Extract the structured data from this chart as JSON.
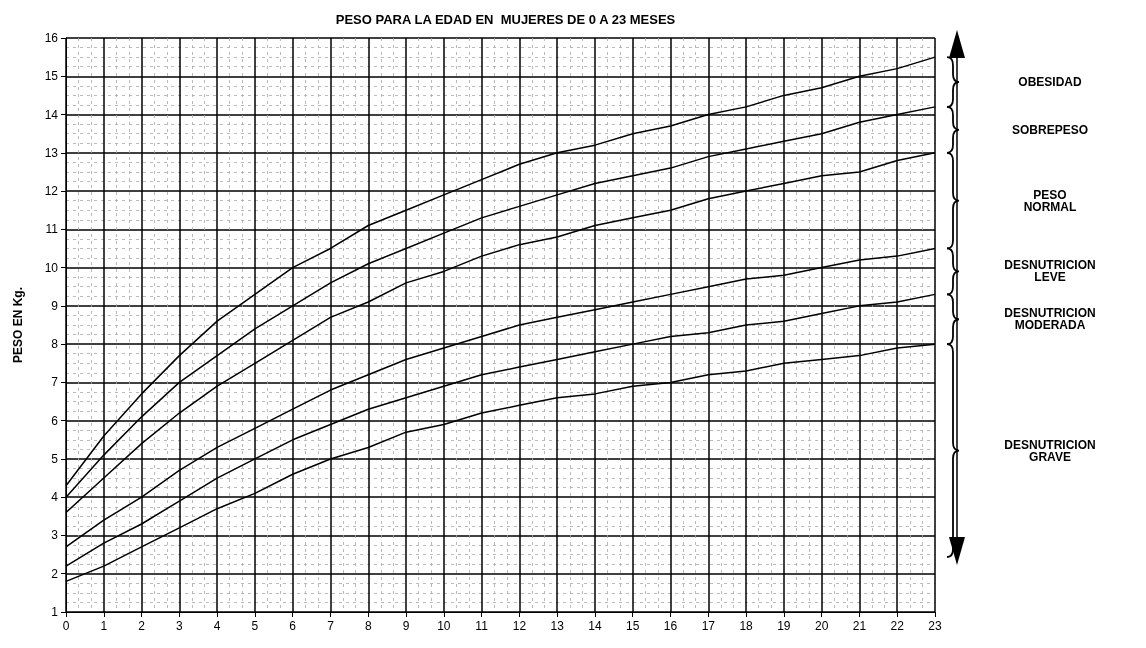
{
  "chart_data": {
    "type": "line",
    "title": "PESO PARA LA EDAD EN  MUJERES DE 0 A 23 MESES",
    "ylabel": "PESO EN Kg.",
    "x": [
      0,
      1,
      2,
      3,
      4,
      5,
      6,
      7,
      8,
      9,
      10,
      11,
      12,
      13,
      14,
      15,
      16,
      17,
      18,
      19,
      20,
      21,
      22,
      23
    ],
    "series": [
      {
        "color": "#000000",
        "values": [
          4.3,
          5.6,
          6.7,
          7.7,
          8.6,
          9.3,
          10.0,
          10.5,
          11.1,
          11.5,
          11.9,
          12.3,
          12.7,
          13.0,
          13.2,
          13.5,
          13.7,
          14.0,
          14.2,
          14.5,
          14.7,
          15.0,
          15.2,
          15.5
        ]
      },
      {
        "color": "#000000",
        "values": [
          4.0,
          5.1,
          6.1,
          7.0,
          7.7,
          8.4,
          9.0,
          9.6,
          10.1,
          10.5,
          10.9,
          11.3,
          11.6,
          11.9,
          12.2,
          12.4,
          12.6,
          12.9,
          13.1,
          13.3,
          13.5,
          13.8,
          14.0,
          14.2
        ]
      },
      {
        "color": "#000000",
        "values": [
          3.6,
          4.5,
          5.4,
          6.2,
          6.9,
          7.5,
          8.1,
          8.7,
          9.1,
          9.6,
          9.9,
          10.3,
          10.6,
          10.8,
          11.1,
          11.3,
          11.5,
          11.8,
          12.0,
          12.2,
          12.4,
          12.5,
          12.8,
          13.0
        ]
      },
      {
        "color": "#000000",
        "values": [
          2.7,
          3.4,
          4.0,
          4.7,
          5.3,
          5.8,
          6.3,
          6.8,
          7.2,
          7.6,
          7.9,
          8.2,
          8.5,
          8.7,
          8.9,
          9.1,
          9.3,
          9.5,
          9.7,
          9.8,
          10.0,
          10.2,
          10.3,
          10.5
        ]
      },
      {
        "color": "#000000",
        "values": [
          2.2,
          2.8,
          3.3,
          3.9,
          4.5,
          5.0,
          5.5,
          5.9,
          6.3,
          6.6,
          6.9,
          7.2,
          7.4,
          7.6,
          7.8,
          8.0,
          8.2,
          8.3,
          8.5,
          8.6,
          8.8,
          9.0,
          9.1,
          9.3
        ]
      },
      {
        "color": "#000000",
        "values": [
          1.8,
          2.2,
          2.7,
          3.2,
          3.7,
          4.1,
          4.6,
          5.0,
          5.3,
          5.7,
          5.9,
          6.2,
          6.4,
          6.6,
          6.7,
          6.9,
          7.0,
          7.2,
          7.3,
          7.5,
          7.6,
          7.7,
          7.9,
          8.0
        ]
      }
    ],
    "xlim": [
      0,
      23
    ],
    "xticks": [
      0,
      1,
      2,
      3,
      4,
      5,
      6,
      7,
      8,
      9,
      10,
      11,
      12,
      13,
      14,
      15,
      16,
      17,
      18,
      19,
      20,
      21,
      22,
      23
    ],
    "ylim": [
      1,
      16
    ],
    "yticks": [
      1,
      2,
      3,
      4,
      5,
      6,
      7,
      8,
      9,
      10,
      11,
      12,
      13,
      14,
      15,
      16
    ],
    "grid": true,
    "marker": "none",
    "line_style": "solid",
    "annotations": [
      "OBESIDAD",
      "SOBREPESO",
      "PESO\nNORMAL",
      "DESNUTRICION\nLEVE",
      "DESNUTRICION\nMODERADA",
      "DESNUTRICION\nGRAVE"
    ]
  }
}
